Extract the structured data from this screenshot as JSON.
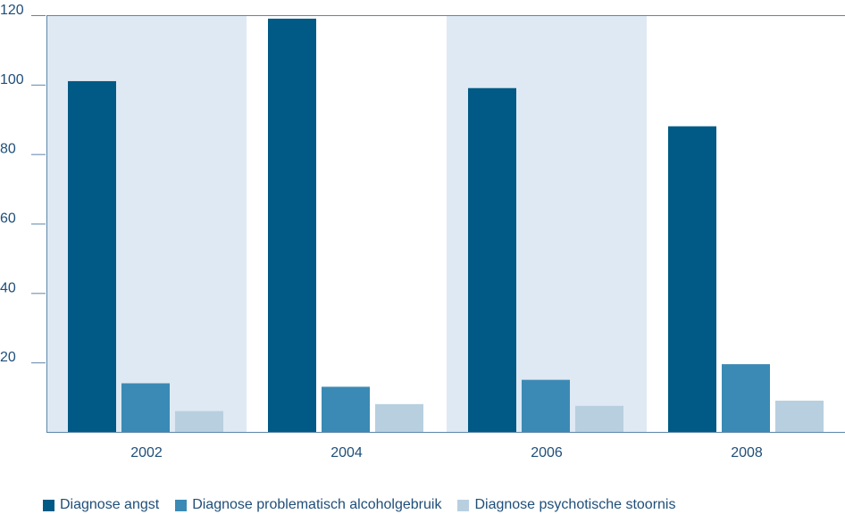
{
  "chart_data": {
    "type": "bar",
    "categories": [
      "2002",
      "2004",
      "2006",
      "2008"
    ],
    "series": [
      {
        "name": "Diagnose angst",
        "values": [
          101,
          119,
          99,
          88
        ],
        "color": "#005a85"
      },
      {
        "name": "Diagnose problematisch alcoholgebruik",
        "values": [
          14,
          13,
          15,
          19.5
        ],
        "color": "#3b8ab5"
      },
      {
        "name": "Diagnose psychotische stoornis",
        "values": [
          6,
          8,
          7.5,
          9
        ],
        "color": "#b8cfe0"
      }
    ],
    "ylim": [
      0,
      120
    ],
    "yticks": [
      20,
      40,
      60,
      80,
      100,
      120
    ],
    "title": "",
    "xlabel": "",
    "ylabel": "",
    "legend_position": "bottom-left",
    "band_color": "#dfe9f3",
    "banded_categories": [
      "2002",
      "2006"
    ],
    "axis_color": "#5b86ab"
  }
}
